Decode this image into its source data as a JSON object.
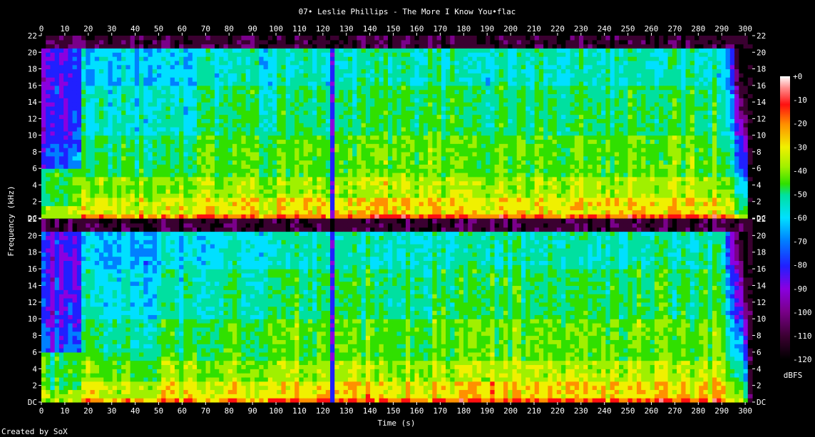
{
  "chart_data": {
    "type": "heatmap",
    "title": "07• Leslie Phillips - The More I Know You•flac",
    "xlabel": "Time (s)",
    "ylabel": "Frequency (kHz)",
    "xlim": [
      0,
      303
    ],
    "ylim": [
      0,
      22
    ],
    "x_ticks": [
      0,
      10,
      20,
      30,
      40,
      50,
      60,
      70,
      80,
      90,
      100,
      110,
      120,
      130,
      140,
      150,
      160,
      170,
      180,
      190,
      200,
      210,
      220,
      230,
      240,
      250,
      260,
      270,
      280,
      290,
      300
    ],
    "y_ticks": [
      "DC",
      "2",
      "4",
      "6",
      "8",
      "10",
      "12",
      "14",
      "16",
      "18",
      "20",
      "22"
    ],
    "channels": 2,
    "colorbar_label": "dBFS",
    "colorbar_ticks": [
      "+0",
      "-10",
      "-20",
      "-30",
      "-40",
      "-50",
      "-60",
      "-70",
      "-80",
      "-90",
      "-100",
      "-110",
      "-120"
    ],
    "colorbar_range": [
      -120,
      0
    ],
    "colors": {
      "c0": "#000000",
      "c1": "#3a0030",
      "c2": "#7a008a",
      "c3": "#8a00e0",
      "c4": "#2020ff",
      "c5": "#0080ff",
      "c6": "#00e0ff",
      "c7": "#00e0a0",
      "c8": "#30e000",
      "c9": "#a0f000",
      "c10": "#f0f000",
      "c11": "#ff9000",
      "c12": "#ff1010",
      "c13": "#ff9090",
      "c14": "#ffffff"
    }
  },
  "footer": {
    "credit": "Created by SoX"
  }
}
